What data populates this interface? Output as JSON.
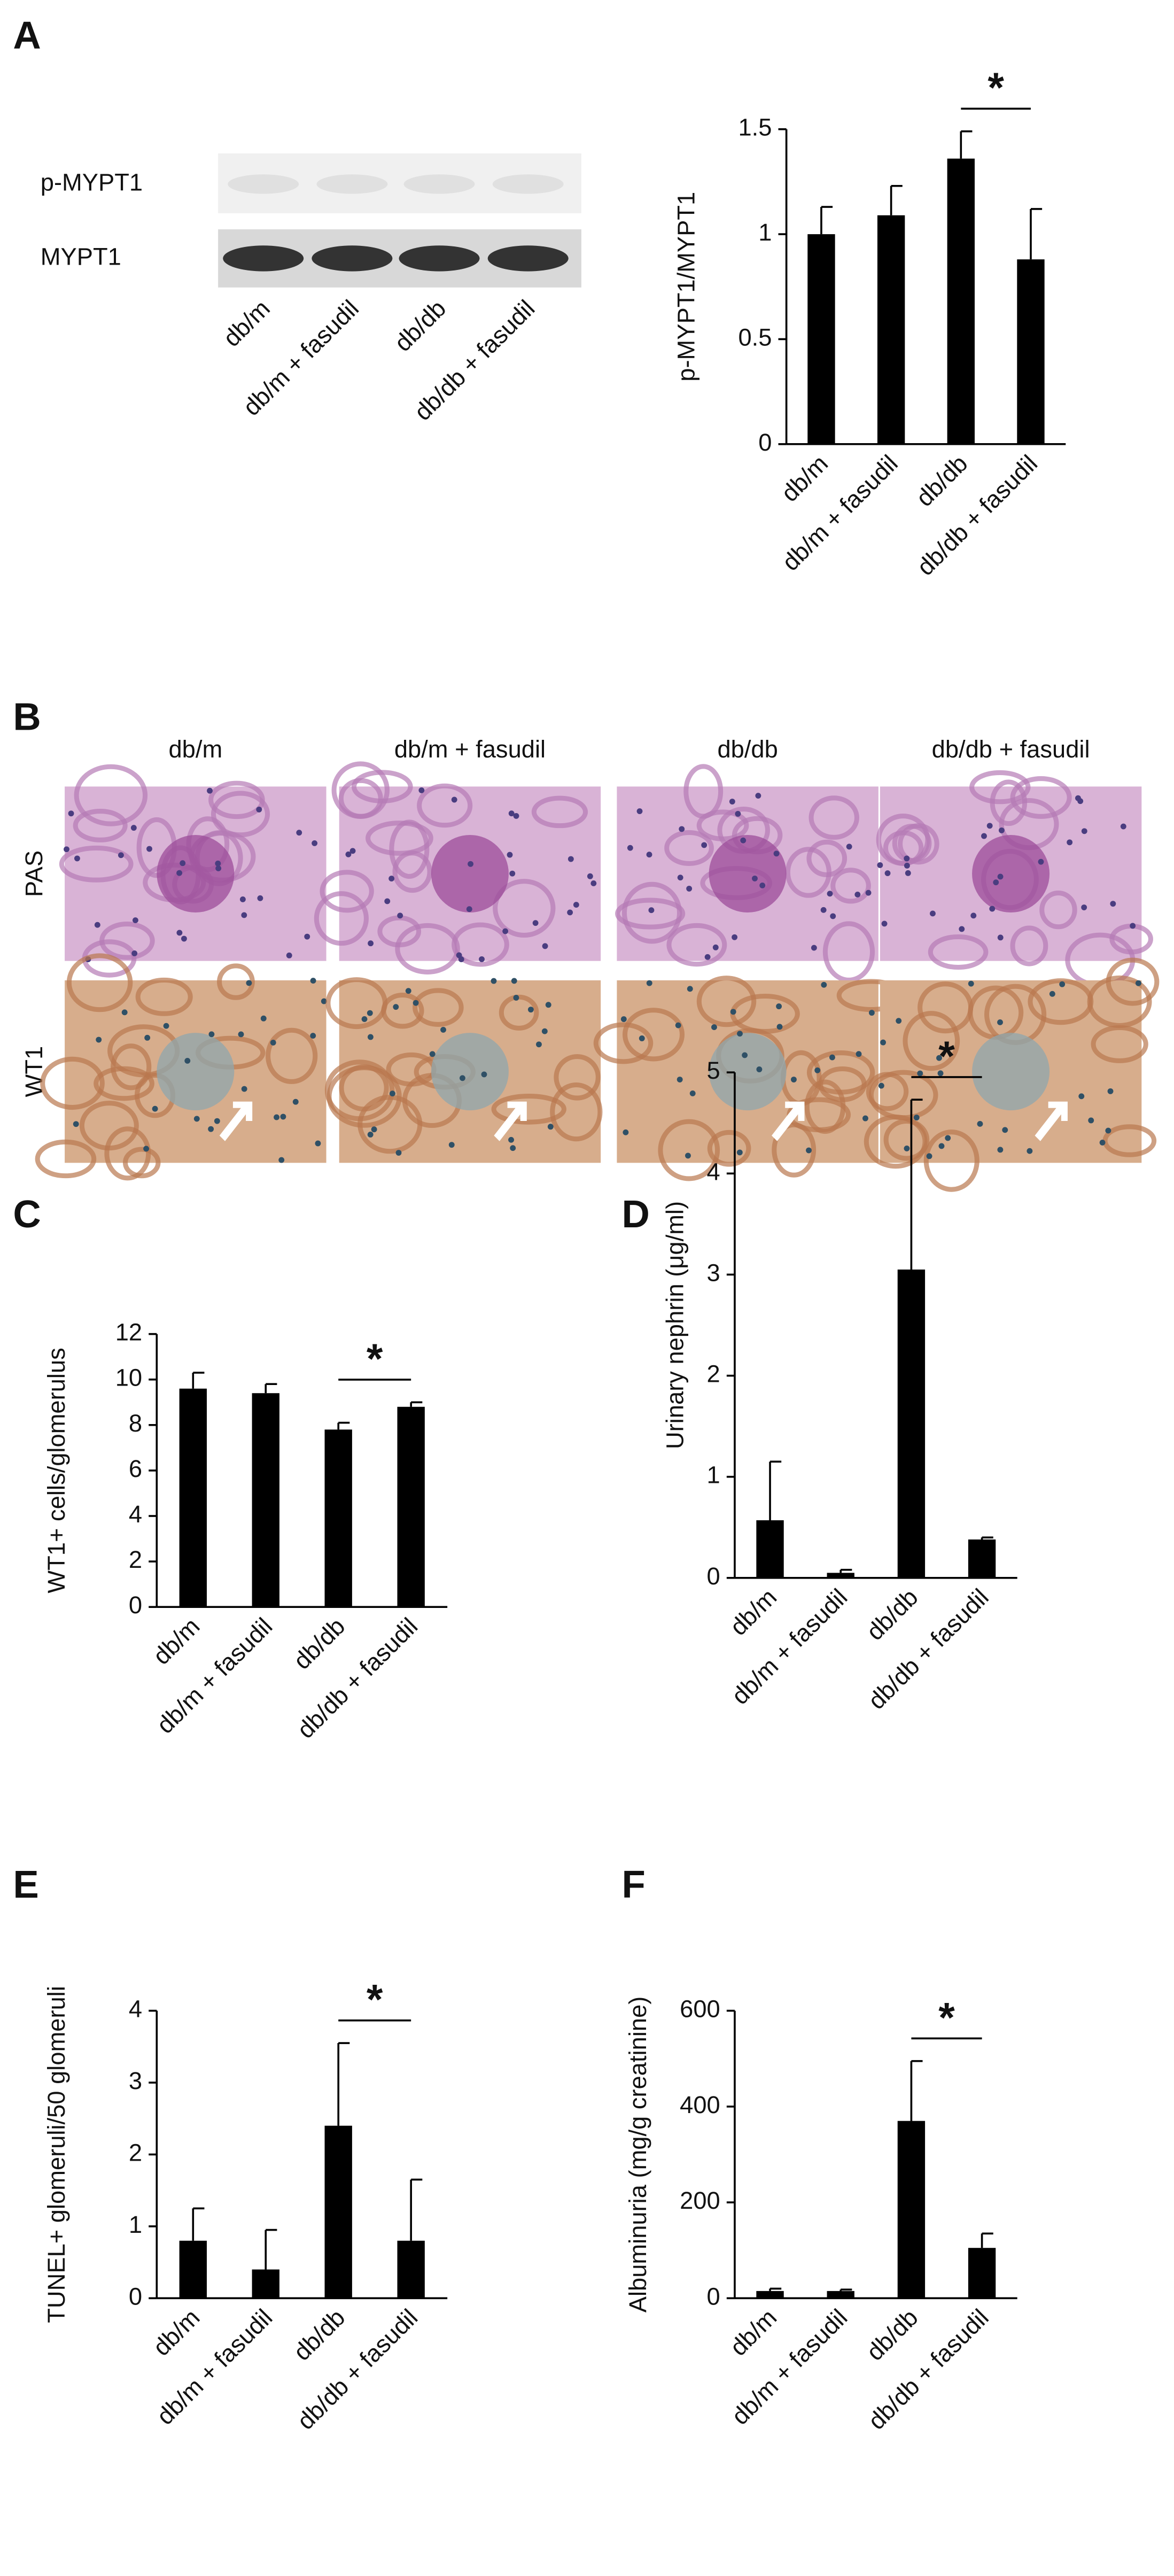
{
  "figure": {
    "blot": {
      "rows": [
        "p-MYPT1",
        "MYPT1"
      ],
      "lanes": [
        "db/m",
        "db/m + fasudil",
        "db/db",
        "db/db + fasudil"
      ]
    },
    "histology": {
      "panel": "B",
      "columns": [
        "db/m",
        "db/m + fasudil",
        "db/db",
        "db/db + fasudil"
      ],
      "rows": [
        "PAS",
        "WT1"
      ]
    }
  },
  "chart_data": [
    {
      "type": "bar",
      "panel": "A",
      "ylabel": "p-MYPT1/MYPT1",
      "categories": [
        "db/m",
        "db/m + fasudil",
        "db/db",
        "db/db + fasudil"
      ],
      "values": [
        1.0,
        1.09,
        1.36,
        0.88
      ],
      "errors": [
        0.13,
        0.14,
        0.13,
        0.24
      ],
      "color": "#000000",
      "ylim": [
        0,
        1.5
      ],
      "yticks": [
        0,
        0.5,
        1,
        1.5
      ],
      "annotation": "*"
    },
    {
      "type": "bar",
      "panel": "C",
      "ylabel": "WT1+ cells/glomerulus",
      "categories": [
        "db/m",
        "db/m + fasudil",
        "db/db",
        "db/db + fasudil"
      ],
      "values": [
        9.6,
        9.4,
        7.8,
        8.8
      ],
      "errors": [
        0.7,
        0.4,
        0.3,
        0.2
      ],
      "color": "#000000",
      "ylim": [
        0,
        12
      ],
      "yticks": [
        0,
        2,
        4,
        6,
        8,
        10,
        12
      ],
      "annotation": "*"
    },
    {
      "type": "bar",
      "panel": "D",
      "ylabel": "Urinary nephrin (μg/ml)",
      "categories": [
        "db/m",
        "db/m + fasudil",
        "db/db",
        "db/db + fasudil"
      ],
      "values": [
        0.57,
        0.05,
        3.05,
        0.38
      ],
      "errors": [
        0.58,
        0.03,
        1.68,
        0.02
      ],
      "color": "#000000",
      "ylim": [
        0,
        5
      ],
      "yticks": [
        0,
        1,
        2,
        3,
        4,
        5
      ],
      "annotation": "*"
    },
    {
      "type": "bar",
      "panel": "E",
      "ylabel": "TUNEL+ glomeruli/50 glomeruli",
      "categories": [
        "db/m",
        "db/m + fasudil",
        "db/db",
        "db/db + fasudil"
      ],
      "values": [
        0.8,
        0.4,
        2.4,
        0.8
      ],
      "errors": [
        0.45,
        0.55,
        1.15,
        0.85
      ],
      "color": "#000000",
      "ylim": [
        0,
        4
      ],
      "yticks": [
        0,
        1,
        2,
        3,
        4
      ],
      "annotation": "*"
    },
    {
      "type": "bar",
      "panel": "F",
      "ylabel": "Albuminuria (mg/g creatinine)",
      "categories": [
        "db/m",
        "db/m + fasudil",
        "db/db",
        "db/db + fasudil"
      ],
      "values": [
        15,
        15,
        370,
        105
      ],
      "errors": [
        5,
        3,
        125,
        30
      ],
      "color": "#000000",
      "ylim": [
        0,
        600
      ],
      "yticks": [
        0,
        200,
        400,
        600
      ],
      "annotation": "*"
    }
  ]
}
